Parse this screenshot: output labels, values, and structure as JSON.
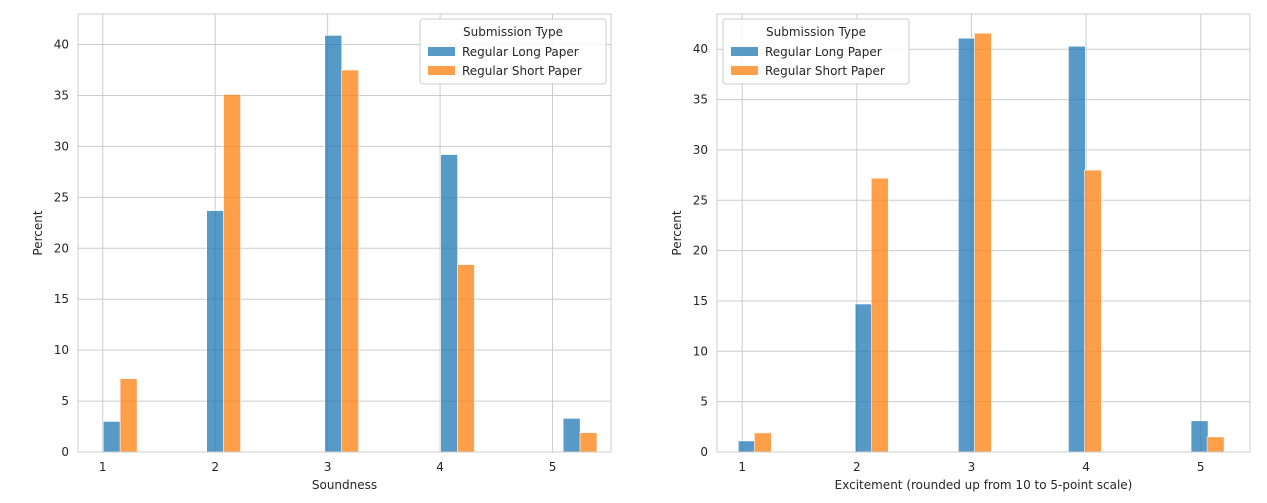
{
  "colors": {
    "series_1": "#1f77b4",
    "series_2": "#ff7f0e",
    "grid": "#cccccc",
    "frame": "#cccccc"
  },
  "chart_data": [
    {
      "type": "bar",
      "xlabel": "Soundness",
      "ylabel": "Percent",
      "x_ticks": [
        "1",
        "2",
        "3",
        "4",
        "5"
      ],
      "y_ticks": [
        0,
        5,
        10,
        15,
        20,
        25,
        30,
        35,
        40
      ],
      "xlim": [
        0.78,
        5.52
      ],
      "ylim": [
        0,
        43
      ],
      "grid": true,
      "legend": {
        "title": "Submission Type",
        "placement": "top-right",
        "entries": [
          "Regular Long Paper",
          "Regular Short Paper"
        ]
      },
      "series": [
        {
          "name": "Regular Long Paper",
          "points": [
            {
              "x": 1.08,
              "value": 3.0
            },
            {
              "x": 2.0,
              "value": 23.7
            },
            {
              "x": 3.05,
              "value": 40.9
            },
            {
              "x": 4.08,
              "value": 29.2
            },
            {
              "x": 5.17,
              "value": 3.3
            }
          ]
        },
        {
          "name": "Regular Short Paper",
          "points": [
            {
              "x": 1.23,
              "value": 7.2
            },
            {
              "x": 2.15,
              "value": 35.1
            },
            {
              "x": 3.2,
              "value": 37.5
            },
            {
              "x": 4.23,
              "value": 18.4
            },
            {
              "x": 5.32,
              "value": 1.9
            }
          ]
        }
      ]
    },
    {
      "type": "bar",
      "xlabel": "Excitement (rounded up from 10 to 5-point scale)",
      "ylabel": "Percent",
      "x_ticks": [
        "1",
        "2",
        "3",
        "4",
        "5"
      ],
      "y_ticks": [
        0,
        5,
        10,
        15,
        20,
        25,
        30,
        35,
        40
      ],
      "xlim": [
        0.78,
        5.43
      ],
      "ylim": [
        0,
        43.5
      ],
      "grid": true,
      "legend": {
        "title": "Submission Type",
        "placement": "top-left",
        "entries": [
          "Regular Long Paper",
          "Regular Short Paper"
        ]
      },
      "series": [
        {
          "name": "Regular Long Paper",
          "points": [
            {
              "x": 1.04,
              "value": 1.1
            },
            {
              "x": 2.06,
              "value": 14.7
            },
            {
              "x": 2.96,
              "value": 41.1
            },
            {
              "x": 3.92,
              "value": 40.3
            },
            {
              "x": 4.99,
              "value": 3.1
            }
          ]
        },
        {
          "name": "Regular Short Paper",
          "points": [
            {
              "x": 1.18,
              "value": 1.9
            },
            {
              "x": 2.2,
              "value": 27.2
            },
            {
              "x": 3.1,
              "value": 41.6
            },
            {
              "x": 4.06,
              "value": 28.0
            },
            {
              "x": 5.13,
              "value": 1.5
            }
          ]
        }
      ]
    }
  ]
}
